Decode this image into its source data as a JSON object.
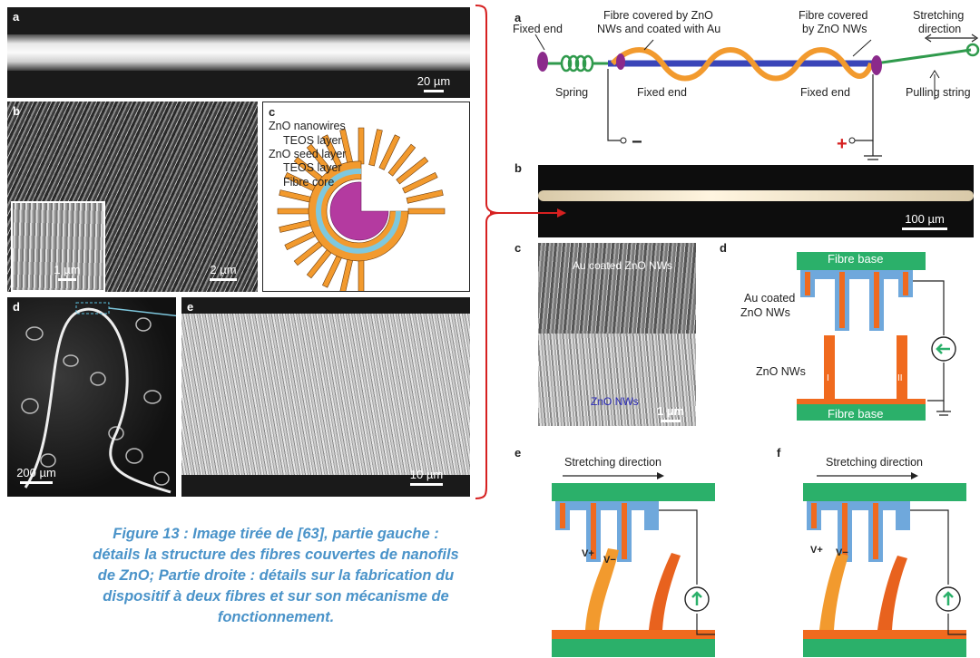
{
  "left": {
    "a": {
      "label": "a",
      "scale": "20 µm"
    },
    "b": {
      "label": "b",
      "scale": "2 µm",
      "inset_scale": "1 µm"
    },
    "c": {
      "label": "c",
      "layers": [
        "ZnO nanowires",
        "TEOS layer",
        "ZnO seed layer",
        "TEOS layer",
        "Fibre core"
      ]
    },
    "d": {
      "label": "d",
      "scale": "200 µm"
    },
    "e": {
      "label": "e",
      "scale": "10 µm"
    }
  },
  "right": {
    "a": {
      "label": "a",
      "fixed_end_left": "Fixed end",
      "fibre_au_line1": "Fibre covered by ZnO",
      "fibre_au_line2": "NWs and coated with Au",
      "fibre_zno_line1": "Fibre covered",
      "fibre_zno_line2": "by ZnO NWs",
      "stretch_line1": "Stretching",
      "stretch_line2": "direction",
      "spring": "Spring",
      "fixed_end_mid": "Fixed end",
      "fixed_end_right": "Fixed end",
      "pulling": "Pulling string",
      "minus": "−",
      "plus": "+"
    },
    "b": {
      "label": "b",
      "scale": "100 µm"
    },
    "c": {
      "label": "c",
      "top": "Au coated ZnO NWs",
      "bottom": "ZnO NWs",
      "scale": "1 µm"
    },
    "d": {
      "label": "d",
      "fibre_base_top": "Fibre base",
      "fibre_base_bottom": "Fibre base",
      "au_line1": "Au coated",
      "au_line2": "ZnO NWs",
      "zno": "ZnO NWs",
      "roman1": "I",
      "roman2": "II"
    },
    "e": {
      "label": "e",
      "stretch": "Stretching direction",
      "vplus": "V+",
      "vminus": "V−"
    },
    "f": {
      "label": "f",
      "stretch": "Stretching direction",
      "vplus": "V+",
      "vminus": "V−"
    }
  },
  "caption": {
    "line1": "Figure 13 : Image tirée de [63], partie gauche :",
    "line2": "détails la structure des fibres couvertes de nanofils",
    "line3": "de ZnO; Partie droite : détails sur la fabrication du",
    "line4": "dispositif à deux fibres et sur son mécanisme de",
    "line5": "fonctionnement."
  },
  "colors": {
    "orange": "#f08a24",
    "blue": "#6fa8dc",
    "green": "#3aa35a",
    "purple": "#8b2a8b",
    "caption": "#4a93c9",
    "bracket": "#d62020"
  }
}
